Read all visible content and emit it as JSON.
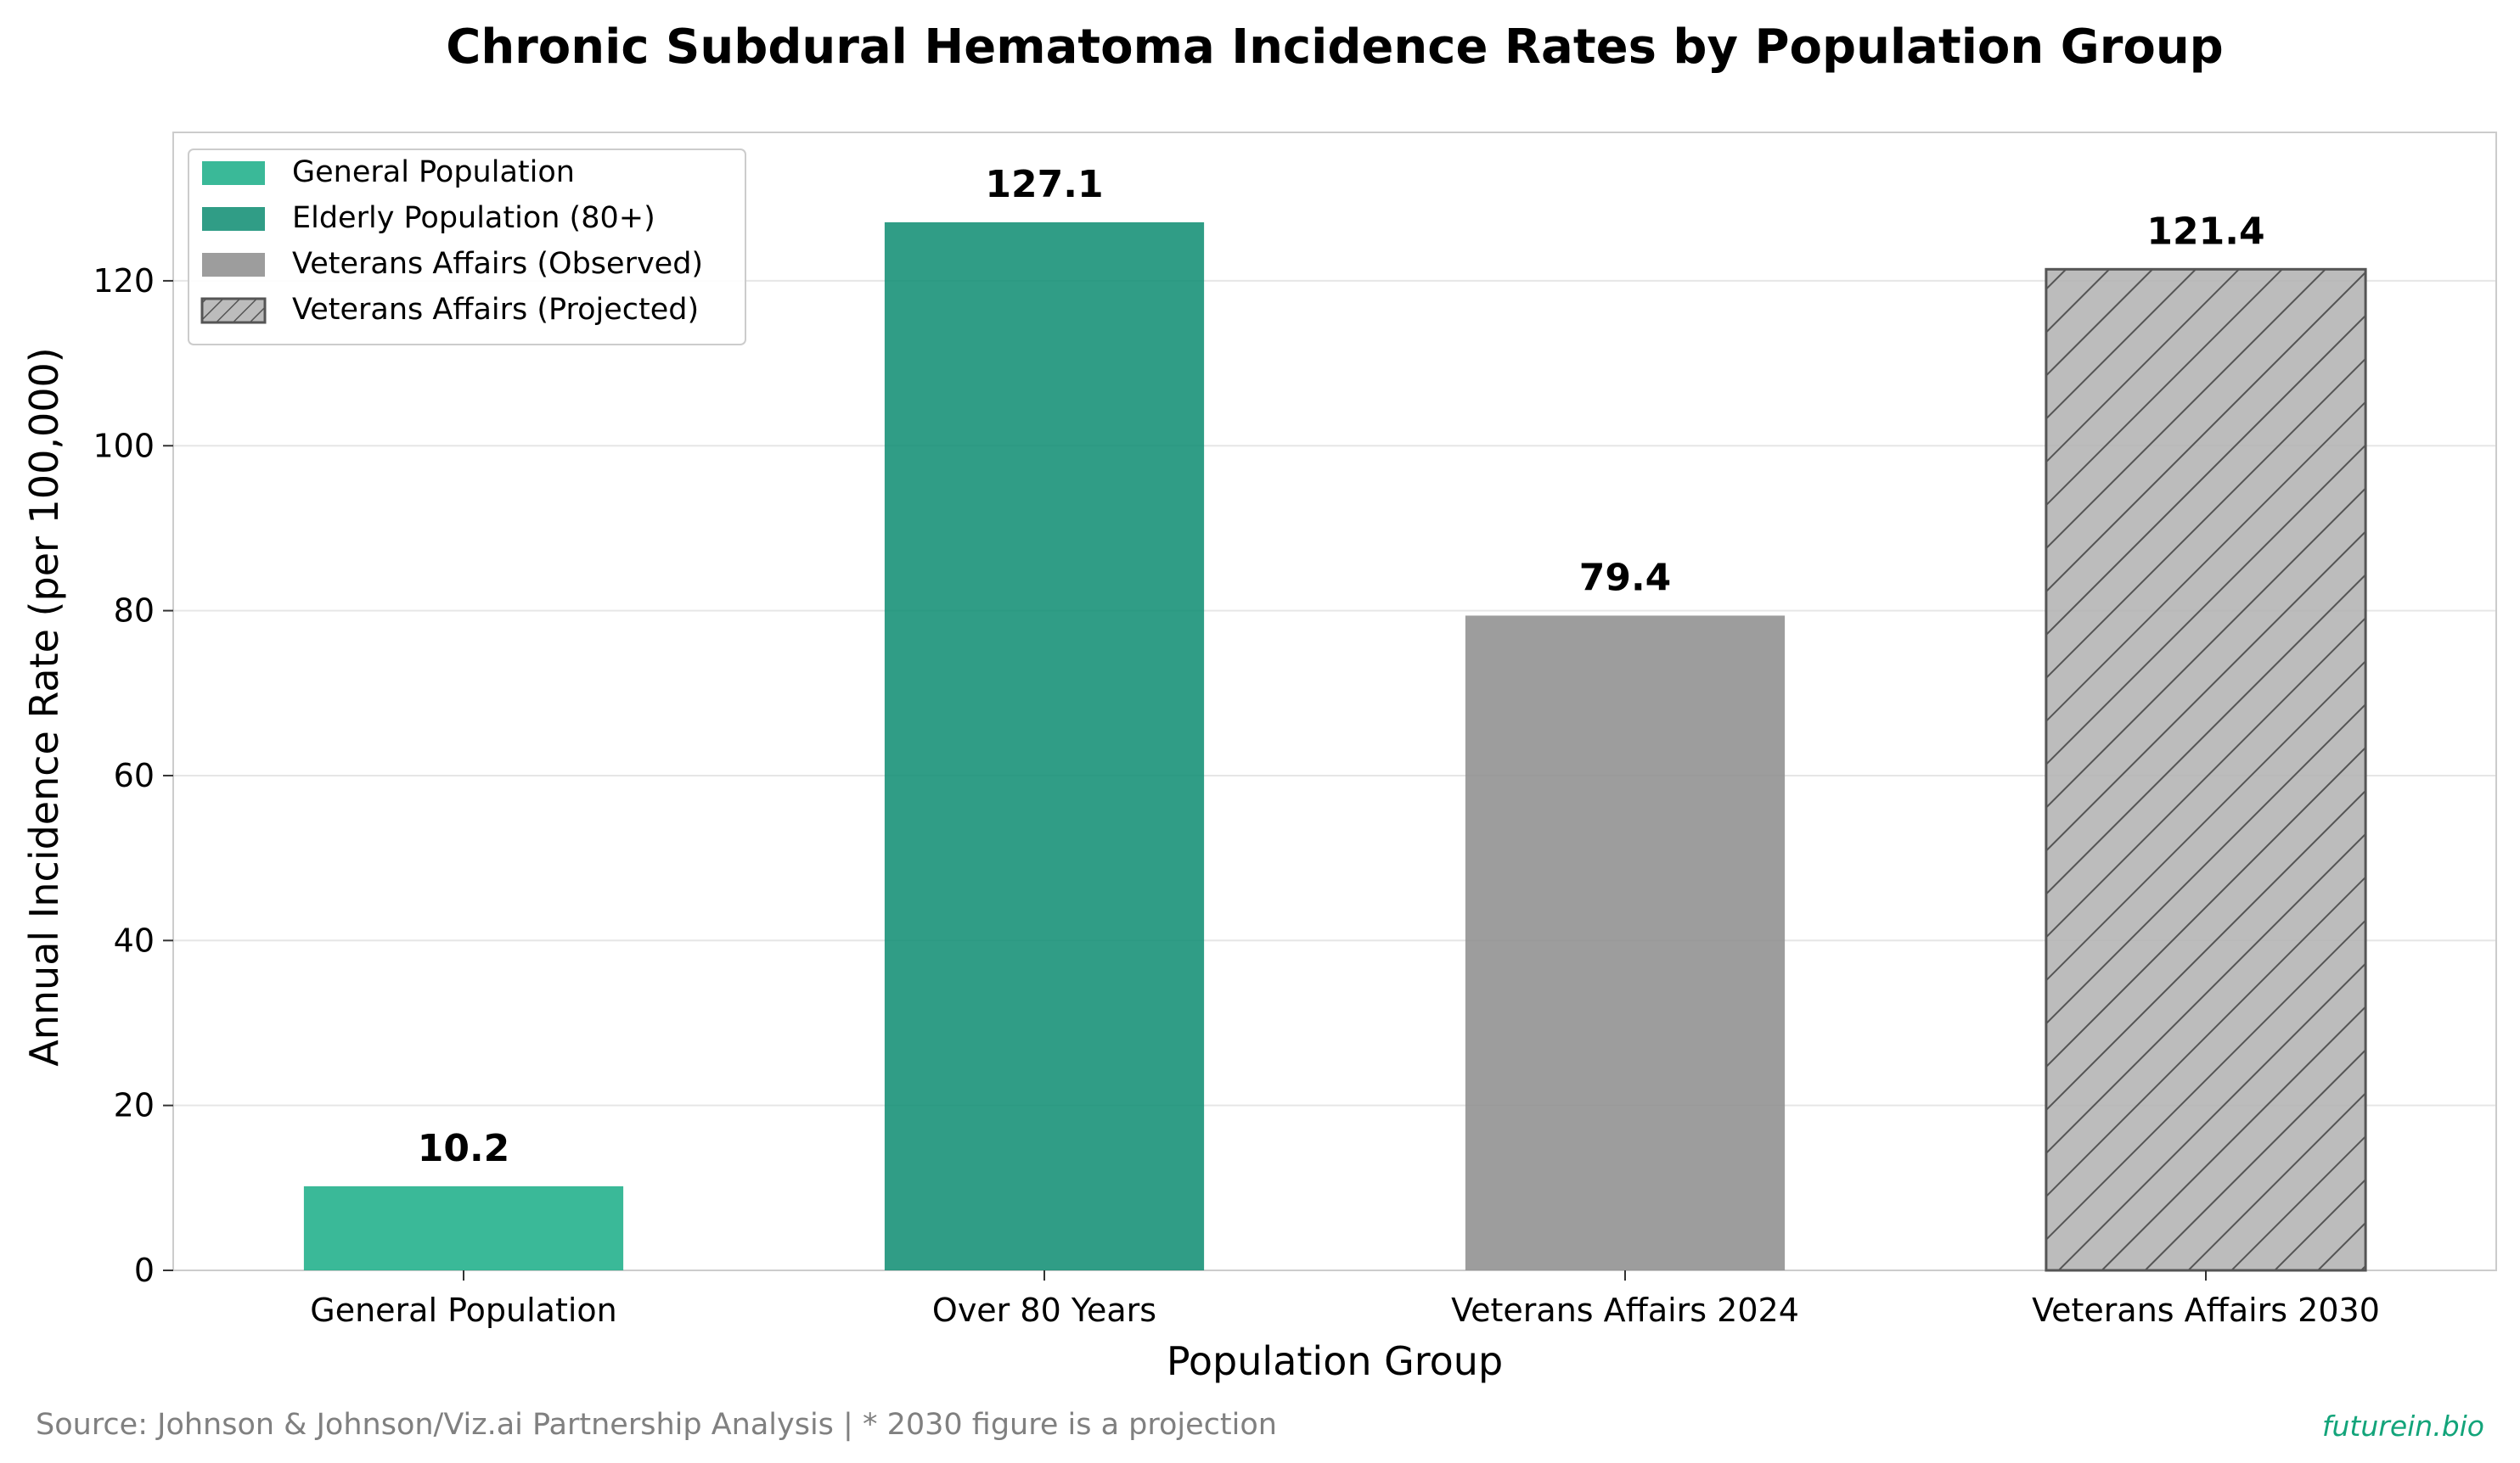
{
  "chart_data": {
    "type": "bar",
    "title": "Chronic Subdural Hematoma Incidence Rates by Population Group",
    "xlabel": "Population Group",
    "ylabel": "Annual Incidence Rate (per 100,000)",
    "categories": [
      "General Population",
      "Over 80 Years",
      "Veterans Affairs 2024",
      "Veterans Affairs 2030"
    ],
    "values": [
      10.2,
      127.1,
      79.4,
      121.4
    ],
    "value_labels": [
      "10.2",
      "127.1",
      "79.4",
      "121.4"
    ],
    "ylim": [
      0,
      138
    ],
    "yticks": [
      0,
      20,
      40,
      60,
      80,
      100,
      120
    ],
    "grid": true,
    "legend_position": "top-left",
    "legend": [
      {
        "label": "General Population",
        "color": "#1faf8a",
        "hatch": false
      },
      {
        "label": "Elderly Population (80+)",
        "color": "#138f75",
        "hatch": false
      },
      {
        "label": "Veterans Affairs (Observed)",
        "color": "#8f8f8f",
        "hatch": false
      },
      {
        "label": "Veterans Affairs (Projected)",
        "color": "#b3b3b3",
        "hatch": true
      }
    ],
    "bar_styles": [
      {
        "color": "#1faf8a",
        "hatch": false
      },
      {
        "color": "#138f75",
        "hatch": false
      },
      {
        "color": "#8f8f8f",
        "hatch": false
      },
      {
        "color": "#b3b3b3",
        "hatch": true
      }
    ]
  },
  "footer": {
    "source": "Source: Johnson & Johnson/Viz.ai Partnership Analysis  |  * 2030 figure is a projection",
    "brand": "futurein.bio",
    "brand_color": "#13a47a"
  }
}
